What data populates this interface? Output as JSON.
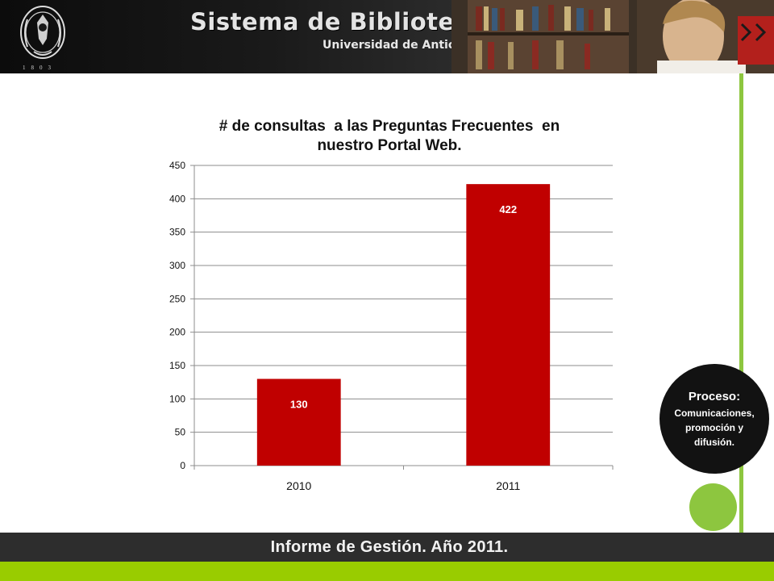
{
  "header": {
    "title": "Sistema de Bibliotecas",
    "subtitle": "Universidad de Antioquia",
    "seal_year": "1803"
  },
  "process": {
    "title": "Proceso:",
    "description": "Comunicaciones, promoción y difusión."
  },
  "footer": {
    "text": "Informe de Gestión. Año 2011."
  },
  "colors": {
    "bar": "#c00000",
    "accent_green": "#8dc63f",
    "footer_green": "#99cc00",
    "footer_bar": "#2d2d2d"
  },
  "chart_data": {
    "type": "bar",
    "title_lines": [
      "# de consultas  a las Preguntas Frecuentes  en",
      "nuestro Portal Web."
    ],
    "categories": [
      "2010",
      "2011"
    ],
    "values": [
      130,
      422
    ],
    "data_labels": [
      "130",
      "422"
    ],
    "ylim": [
      0,
      450
    ],
    "yticks": [
      0,
      50,
      100,
      150,
      200,
      250,
      300,
      350,
      400,
      450
    ],
    "grid": true,
    "legend": "none"
  }
}
